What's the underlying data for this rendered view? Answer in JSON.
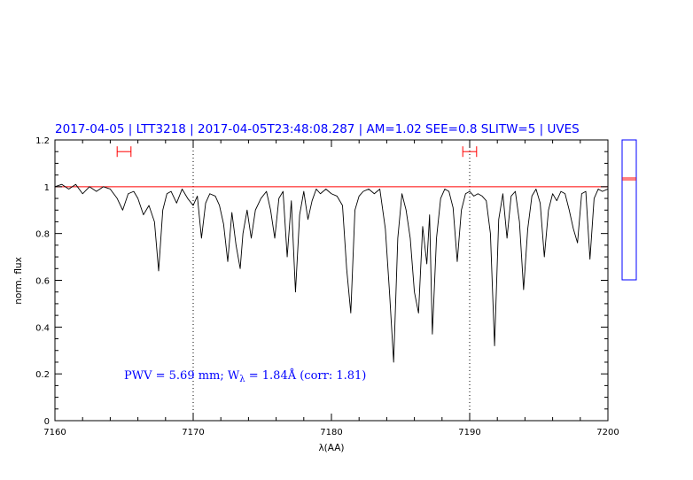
{
  "header": {
    "text": "2017-04-05 | LTT3218 | 2017-04-05T23:48:08.287 | AM=1.02 SEE=0.8 SLITW=5 | UVES"
  },
  "annotation": {
    "prefix": "PWV = 5.69 mm; W",
    "subscript": "λ",
    "suffix": " = 1.84Å (corr: 1.81)"
  },
  "colors": {
    "header": "#0000ff",
    "spectrum": "#000000",
    "continuum": "#ff0000",
    "axes": "#000000",
    "side_box": "#0000ff"
  },
  "chart_data": {
    "type": "line",
    "title": "",
    "xlabel": "λ(AA)",
    "ylabel": "norm. flux",
    "xlim": [
      7160,
      7200
    ],
    "ylim": [
      0,
      1.2
    ],
    "x_ticks": [
      7160,
      7170,
      7180,
      7190,
      7200
    ],
    "x_tick_labels": [
      "7160",
      "7170",
      "7180",
      "7190",
      "7200"
    ],
    "y_ticks": [
      0,
      0.2,
      0.4,
      0.6,
      0.8,
      1,
      1.2
    ],
    "y_tick_labels": [
      "0",
      "0.2",
      "0.4",
      "0.6",
      "0.8",
      "1",
      "1.2"
    ],
    "vertical_dotted_lines": [
      7170,
      7190
    ],
    "continuum_level": 1.0,
    "continuum_windows": [
      [
        7164.5,
        7165.5
      ],
      [
        7189.5,
        7190.5
      ]
    ],
    "continuum_window_marker_y": 1.15,
    "series": [
      {
        "x": [
          7160.0,
          7160.5,
          7161.0,
          7161.5,
          7162.0,
          7162.5,
          7163.0,
          7163.5,
          7164.0,
          7164.5,
          7164.9,
          7165.3,
          7165.7,
          7166.0,
          7166.4,
          7166.8,
          7167.2,
          7167.5,
          7167.8,
          7168.1,
          7168.4,
          7168.8,
          7169.2,
          7169.6,
          7170.0,
          7170.3,
          7170.6,
          7170.9,
          7171.2,
          7171.6,
          7171.9,
          7172.2,
          7172.5,
          7172.8,
          7173.1,
          7173.4,
          7173.6,
          7173.9,
          7174.2,
          7174.5,
          7174.9,
          7175.3,
          7175.6,
          7175.9,
          7176.2,
          7176.5,
          7176.8,
          7177.1,
          7177.4,
          7177.7,
          7178.0,
          7178.3,
          7178.6,
          7178.9,
          7179.2,
          7179.6,
          7180.0,
          7180.4,
          7180.8,
          7181.1,
          7181.4,
          7181.7,
          7182.0,
          7182.3,
          7182.7,
          7183.1,
          7183.5,
          7183.9,
          7184.2,
          7184.5,
          7184.8,
          7185.1,
          7185.4,
          7185.7,
          7186.0,
          7186.3,
          7186.6,
          7186.9,
          7187.1,
          7187.3,
          7187.6,
          7187.9,
          7188.2,
          7188.5,
          7188.8,
          7189.1,
          7189.4,
          7189.7,
          7190.0,
          7190.3,
          7190.6,
          7190.9,
          7191.2,
          7191.5,
          7191.8,
          7192.1,
          7192.4,
          7192.7,
          7193.0,
          7193.3,
          7193.6,
          7193.9,
          7194.2,
          7194.5,
          7194.8,
          7195.1,
          7195.4,
          7195.7,
          7196.0,
          7196.3,
          7196.6,
          7196.9,
          7197.2,
          7197.5,
          7197.8,
          7198.1,
          7198.4,
          7198.7,
          7199.0,
          7199.3,
          7199.6,
          7200.0
        ],
        "y": [
          1.0,
          1.01,
          0.99,
          1.01,
          0.97,
          1.0,
          0.98,
          1.0,
          0.99,
          0.95,
          0.9,
          0.97,
          0.98,
          0.95,
          0.88,
          0.92,
          0.85,
          0.64,
          0.9,
          0.97,
          0.98,
          0.93,
          0.99,
          0.95,
          0.92,
          0.96,
          0.78,
          0.93,
          0.97,
          0.96,
          0.92,
          0.84,
          0.68,
          0.89,
          0.75,
          0.65,
          0.8,
          0.9,
          0.78,
          0.9,
          0.95,
          0.98,
          0.9,
          0.78,
          0.95,
          0.98,
          0.7,
          0.94,
          0.55,
          0.88,
          0.98,
          0.86,
          0.94,
          0.99,
          0.97,
          0.99,
          0.97,
          0.96,
          0.92,
          0.65,
          0.46,
          0.9,
          0.96,
          0.98,
          0.99,
          0.97,
          0.99,
          0.82,
          0.55,
          0.25,
          0.78,
          0.97,
          0.9,
          0.78,
          0.55,
          0.46,
          0.83,
          0.67,
          0.88,
          0.37,
          0.78,
          0.95,
          0.99,
          0.98,
          0.91,
          0.68,
          0.9,
          0.97,
          0.98,
          0.96,
          0.97,
          0.96,
          0.94,
          0.8,
          0.32,
          0.86,
          0.97,
          0.78,
          0.96,
          0.98,
          0.85,
          0.56,
          0.82,
          0.96,
          0.99,
          0.93,
          0.7,
          0.9,
          0.97,
          0.94,
          0.98,
          0.97,
          0.9,
          0.82,
          0.76,
          0.97,
          0.98,
          0.69,
          0.95,
          0.99,
          0.98,
          0.99
        ]
      }
    ]
  }
}
